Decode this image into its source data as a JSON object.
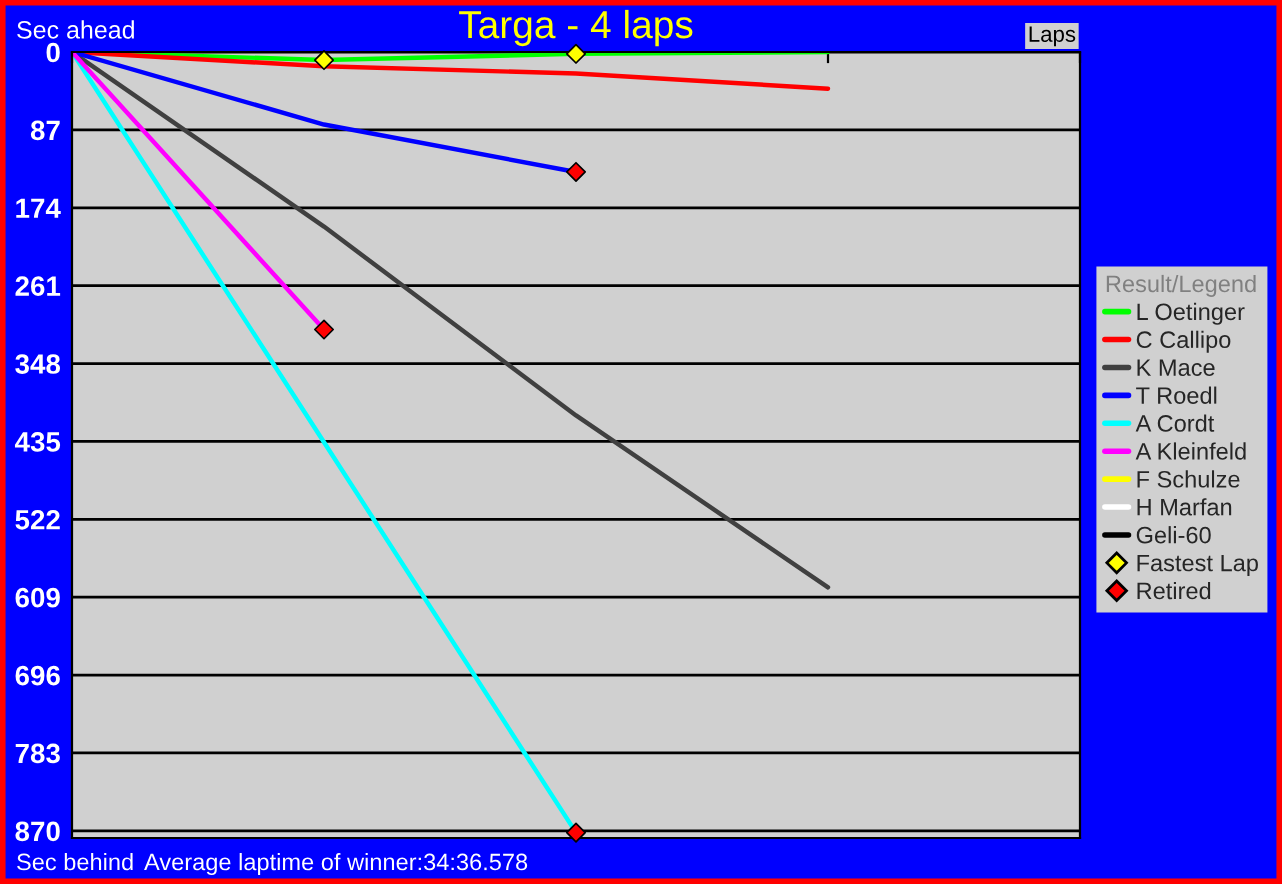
{
  "chart_data": {
    "type": "line",
    "title": "Targa - 4 laps",
    "ylabel": "Sec ahead",
    "xlabel": "Laps",
    "legend_title": "Result/Legend",
    "annotations": [
      "Sec behind",
      "Average laptime of winner:34:36.578"
    ],
    "categories": [
      null,
      null,
      null,
      null,
      null
    ],
    "ylim": [
      878,
      0
    ],
    "yticks": [
      0,
      87,
      174,
      261,
      348,
      435,
      522,
      609,
      696,
      783,
      870
    ],
    "grid": "y",
    "legend": "right",
    "tick_labels": "y",
    "line_style": "solid",
    "series": [
      {
        "name": "L Oetinger",
        "color": "#00ff00",
        "values": [
          0,
          9,
          2,
          0,
          null
        ]
      },
      {
        "name": "C Callipo",
        "color": "#ff0000",
        "values": [
          0,
          16,
          24,
          41,
          null
        ]
      },
      {
        "name": "K Mace",
        "color": "#404040",
        "values": [
          0,
          195,
          406,
          598,
          null
        ]
      },
      {
        "name": "T Roedl",
        "color": "#0000ff",
        "values": [
          0,
          81,
          134,
          null,
          null
        ]
      },
      {
        "name": "A Cordt",
        "color": "#00ffff",
        "values": [
          0,
          436,
          872,
          null,
          null
        ]
      },
      {
        "name": "A Kleinfeld",
        "color": "#ff00ff",
        "values": [
          0,
          310,
          null,
          null,
          null
        ]
      },
      {
        "name": "F Schulze",
        "color": "#ffff00",
        "values": [
          null,
          null,
          null,
          null,
          null
        ]
      },
      {
        "name": "H Marfan",
        "color": "#ffffff",
        "values": [
          null,
          null,
          null,
          null,
          null
        ]
      },
      {
        "name": "Geli-60",
        "color": "#000000",
        "values": [
          null,
          null,
          null,
          null,
          null
        ]
      },
      {
        "name": "Fastest Lap",
        "type": "scatter",
        "marker": "diamond",
        "color": "#ffff00",
        "values": [
          null,
          9,
          2,
          null,
          null
        ]
      },
      {
        "name": "Retired",
        "type": "scatter",
        "marker": "diamond",
        "color": "#ff0000",
        "values": [
          null,
          310,
          134,
          null,
          null
        ]
      },
      {
        "type": "scatter",
        "marker": "diamond",
        "color": "#ff0000",
        "values": [
          null,
          null,
          872,
          null,
          null
        ]
      }
    ]
  }
}
